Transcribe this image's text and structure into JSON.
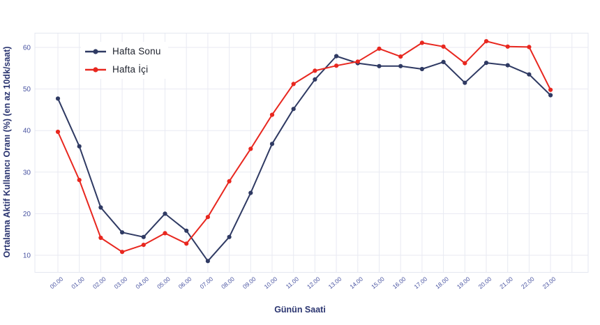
{
  "chart_data": {
    "type": "line",
    "title": "",
    "xlabel": "Günün Saati",
    "ylabel": "Ortalama Aktif Kullanıcı Oranı (%) (en az 10dk/saat)",
    "categories": [
      "00.00",
      "01.00",
      "02.00",
      "03.00",
      "04.00",
      "05.00",
      "06.00",
      "07.00",
      "08.00",
      "09.00",
      "10.00",
      "11.00",
      "12.00",
      "13.00",
      "14.00",
      "15.00",
      "16.00",
      "17.00",
      "18.00",
      "19.00",
      "20.00",
      "21.00",
      "22.00",
      "23.00"
    ],
    "y_ticks": [
      10,
      20,
      30,
      40,
      50,
      60
    ],
    "ylim": [
      6,
      63.4
    ],
    "grid": true,
    "legend_position": "inside-top-left",
    "series": [
      {
        "name": "Hafta Sonu",
        "color": "#2f3a63",
        "values": [
          47.7,
          36.2,
          21.5,
          15.5,
          14.4,
          20.0,
          15.9,
          8.6,
          14.4,
          25.0,
          36.8,
          45.2,
          52.3,
          57.9,
          56.2,
          55.5,
          55.5,
          54.8,
          56.5,
          51.5,
          56.3,
          55.7,
          53.5,
          48.5
        ]
      },
      {
        "name": "Hafta İçi",
        "color": "#e8271f",
        "values": [
          39.7,
          28.1,
          14.2,
          10.8,
          12.5,
          15.3,
          12.8,
          19.2,
          27.8,
          35.6,
          43.8,
          51.2,
          54.4,
          55.6,
          56.6,
          59.7,
          57.8,
          61.1,
          60.2,
          56.2,
          61.5,
          60.2,
          60.1,
          49.8
        ]
      }
    ]
  },
  "colors": {
    "grid": "#e8eaf2",
    "plot_border": "#e4e7f0",
    "tick_label": "#4752a0",
    "axis_title": "#2b3570",
    "legend_text": "#20242f",
    "background": "#ffffff"
  }
}
